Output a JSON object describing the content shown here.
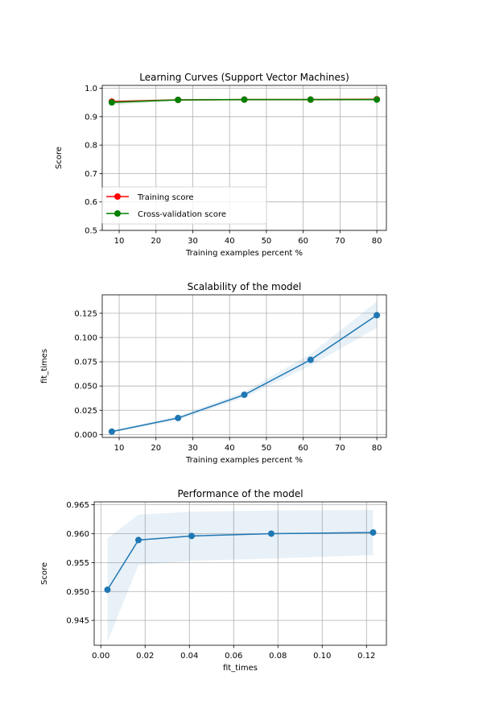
{
  "colors": {
    "training": "#ff0000",
    "cv": "#008000",
    "scal": "#1f77b4",
    "band_train": "#ff0000",
    "band_cv": "#008000",
    "band_scal": "#1f77b4",
    "grid": "#b0b0b0"
  },
  "chart_data": [
    {
      "type": "line",
      "title": "Learning Curves (Support Vector Machines)",
      "xlabel": "Training examples percent %",
      "ylabel": "Score",
      "xlim": [
        5.4,
        82.6
      ],
      "ylim": [
        0.5,
        1.01
      ],
      "xticks": [
        10,
        20,
        30,
        40,
        50,
        60,
        70,
        80
      ],
      "yticks": [
        0.5,
        0.6,
        0.7,
        0.8,
        0.9,
        1.0
      ],
      "ytick_labels": [
        "0.5",
        "0.6",
        "0.7",
        "0.8",
        "0.9",
        "1.0"
      ],
      "grid": true,
      "legend_position": "lower-left",
      "x": [
        8,
        26,
        44,
        62,
        80
      ],
      "series": [
        {
          "name": "Training score",
          "color_key": "training",
          "band_color_key": "band_train",
          "values": [
            0.953,
            0.959,
            0.96,
            0.96,
            0.961
          ],
          "lower": [
            0.95,
            0.956,
            0.957,
            0.958,
            0.958
          ],
          "upper": [
            0.956,
            0.962,
            0.963,
            0.963,
            0.964
          ]
        },
        {
          "name": "Cross-validation score",
          "color_key": "cv",
          "band_color_key": "band_cv",
          "values": [
            0.95,
            0.959,
            0.96,
            0.96,
            0.96
          ],
          "lower": [
            0.941,
            0.955,
            0.956,
            0.956,
            0.956
          ],
          "upper": [
            0.959,
            0.963,
            0.964,
            0.964,
            0.964
          ]
        }
      ]
    },
    {
      "type": "line",
      "title": "Scalability of the model",
      "xlabel": "Training examples percent %",
      "ylabel": "fit_times",
      "xlim": [
        5.4,
        82.6
      ],
      "ylim": [
        -0.003,
        0.144
      ],
      "xticks": [
        10,
        20,
        30,
        40,
        50,
        60,
        70,
        80
      ],
      "yticks": [
        0.0,
        0.025,
        0.05,
        0.075,
        0.1,
        0.125
      ],
      "ytick_labels": [
        "0.000",
        "0.025",
        "0.050",
        "0.075",
        "0.100",
        "0.125"
      ],
      "grid": true,
      "x": [
        8,
        26,
        44,
        62,
        80
      ],
      "series": [
        {
          "color_key": "scal",
          "band_color_key": "band_scal",
          "values": [
            0.003,
            0.017,
            0.041,
            0.077,
            0.123
          ],
          "lower": [
            0.002,
            0.015,
            0.038,
            0.071,
            0.11
          ],
          "upper": [
            0.004,
            0.019,
            0.044,
            0.083,
            0.137
          ]
        }
      ]
    },
    {
      "type": "line",
      "title": "Performance of the model",
      "xlabel": "fit_times",
      "ylabel": "Score",
      "xlim": [
        -0.003,
        0.129
      ],
      "ylim": [
        0.9407,
        0.9655
      ],
      "xticks": [
        0.0,
        0.02,
        0.04,
        0.06,
        0.08,
        0.1,
        0.12
      ],
      "xtick_labels": [
        "0.00",
        "0.02",
        "0.04",
        "0.06",
        "0.08",
        "0.10",
        "0.12"
      ],
      "yticks": [
        0.945,
        0.95,
        0.955,
        0.96,
        0.965
      ],
      "ytick_labels": [
        "0.945",
        "0.950",
        "0.955",
        "0.960",
        "0.965"
      ],
      "grid": true,
      "x": [
        0.003,
        0.017,
        0.041,
        0.077,
        0.123
      ],
      "series": [
        {
          "color_key": "scal",
          "band_color_key": "band_scal",
          "values": [
            0.9503,
            0.9589,
            0.9596,
            0.96,
            0.9602
          ],
          "lower": [
            0.9413,
            0.9546,
            0.9553,
            0.9557,
            0.9563
          ],
          "upper": [
            0.9592,
            0.9633,
            0.9638,
            0.964,
            0.9641
          ]
        }
      ]
    }
  ]
}
